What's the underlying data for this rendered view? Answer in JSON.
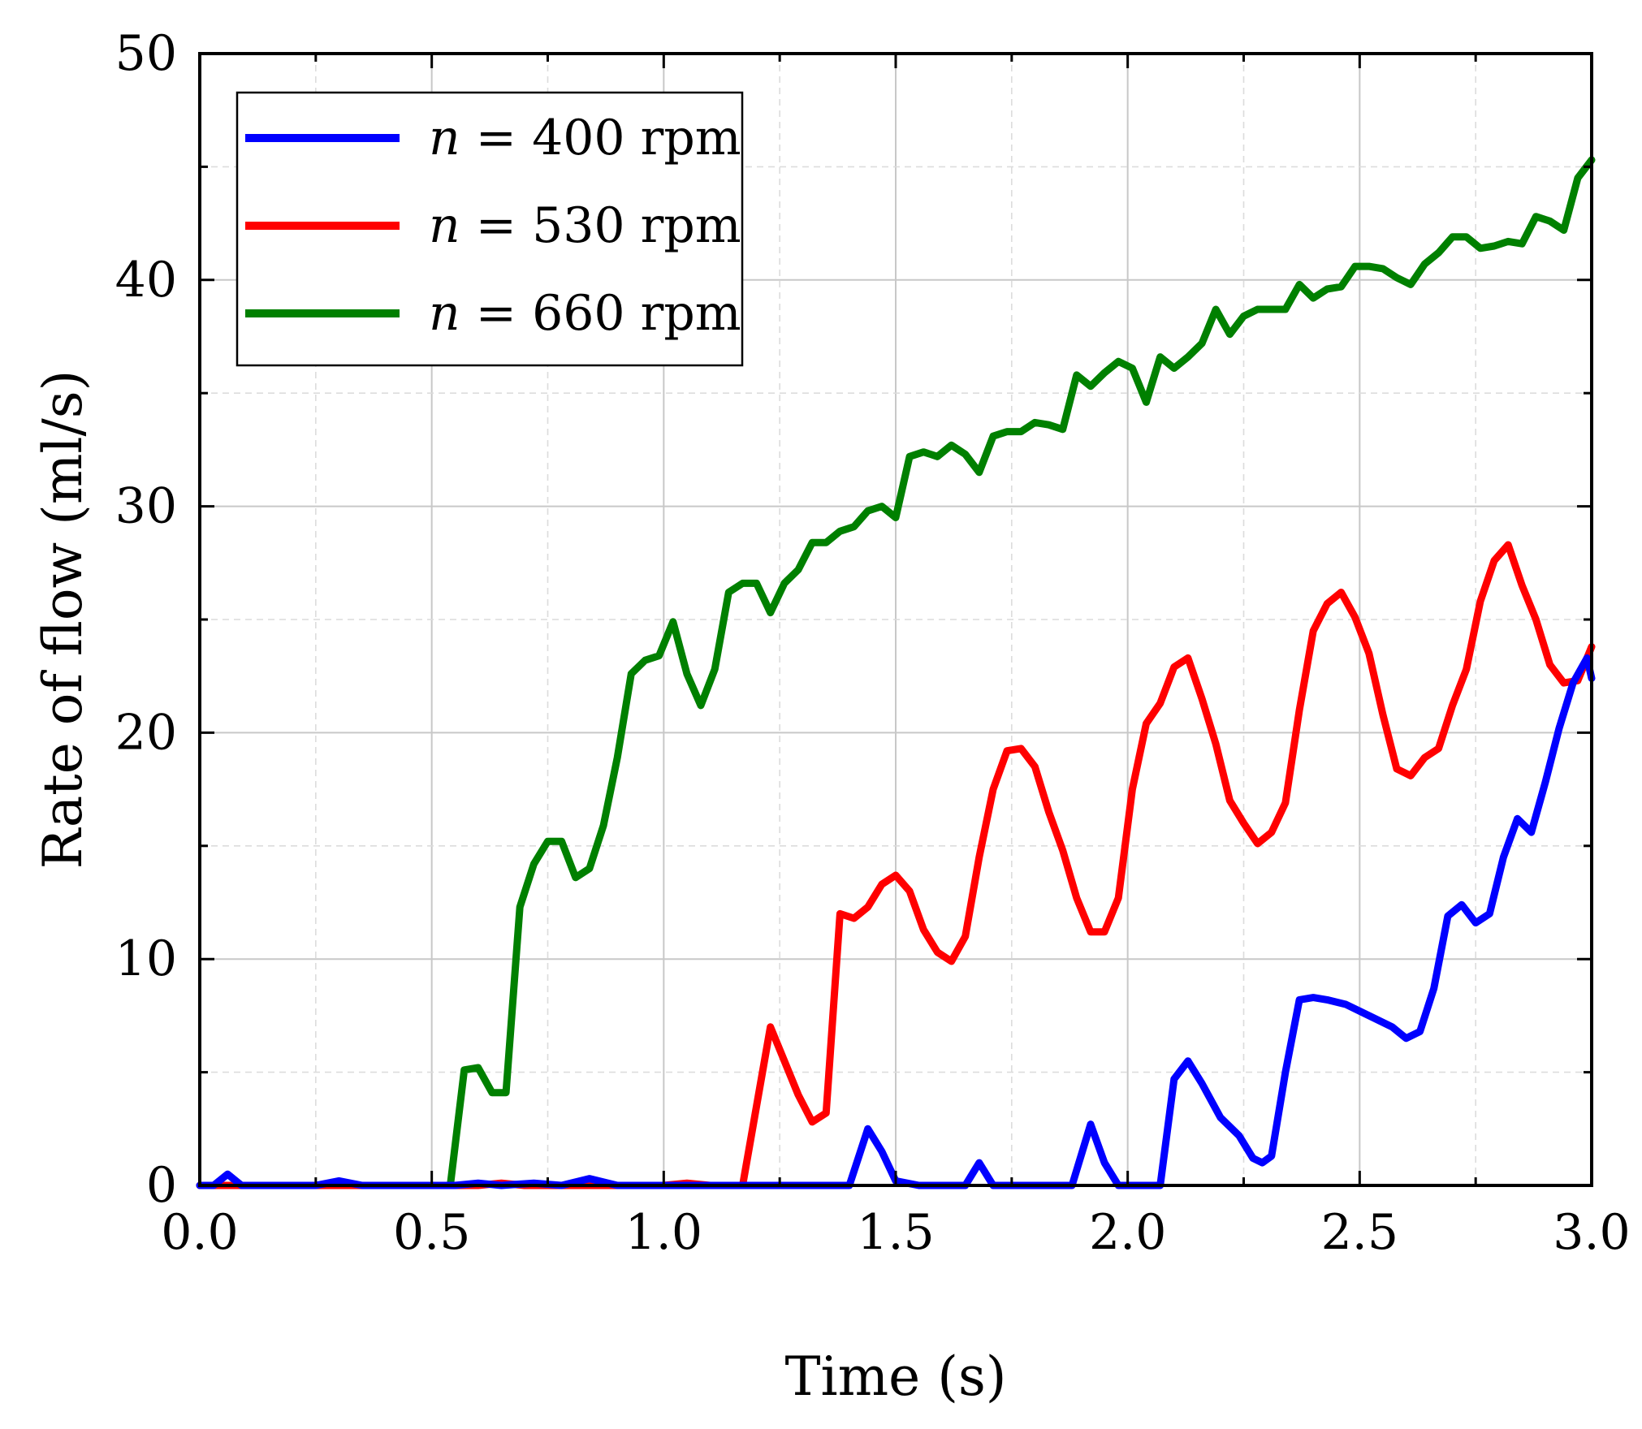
{
  "chart_data": {
    "type": "line",
    "title": "",
    "xlabel": "Time (s)",
    "ylabel": "Rate of flow (ml/s)",
    "xlim": [
      0,
      3
    ],
    "ylim": [
      0,
      50
    ],
    "xticks": [
      0,
      0.5,
      1,
      1.5,
      2,
      2.5,
      3
    ],
    "xtick_labels": [
      "0.0",
      "0.5",
      "1.0",
      "1.5",
      "2.0",
      "2.5",
      "3.0"
    ],
    "yticks": [
      0,
      10,
      20,
      30,
      40,
      50
    ],
    "ytick_labels": [
      "0",
      "10",
      "20",
      "30",
      "40",
      "50"
    ],
    "grid": true,
    "legend_position": "top-left",
    "series": [
      {
        "name": "n = 400 rpm",
        "symbol": "n",
        "label_rest": " = 400 rpm",
        "color": "#0000ff",
        "x": [
          0,
          0.03,
          0.06,
          0.09,
          0.25,
          0.3,
          0.35,
          0.55,
          0.6,
          0.65,
          0.72,
          0.78,
          0.84,
          0.9,
          1.0,
          1.1,
          1.2,
          1.35,
          1.4,
          1.44,
          1.47,
          1.5,
          1.55,
          1.65,
          1.68,
          1.71,
          1.85,
          1.88,
          1.92,
          1.95,
          1.98,
          2.07,
          2.1,
          2.13,
          2.16,
          2.2,
          2.24,
          2.27,
          2.29,
          2.31,
          2.34,
          2.37,
          2.4,
          2.43,
          2.47,
          2.5,
          2.53,
          2.57,
          2.6,
          2.63,
          2.66,
          2.69,
          2.72,
          2.75,
          2.78,
          2.81,
          2.84,
          2.87,
          2.9,
          2.93,
          2.96,
          2.99,
          3.0
        ],
        "y": [
          0,
          0,
          0.5,
          0,
          0,
          0.2,
          0,
          0,
          0.1,
          0,
          0.1,
          0,
          0.3,
          0,
          0,
          0,
          0,
          0,
          0,
          2.5,
          1.5,
          0.2,
          0,
          0,
          1,
          0,
          0,
          0,
          2.7,
          1,
          0,
          0,
          4.7,
          5.5,
          4.5,
          3,
          2.2,
          1.2,
          1,
          1.3,
          5,
          8.2,
          8.3,
          8.2,
          8,
          7.7,
          7.4,
          7,
          6.5,
          6.8,
          8.7,
          11.9,
          12.4,
          11.6,
          12,
          14.5,
          16.2,
          15.6,
          17.8,
          20.2,
          22.2,
          23.3,
          22.4
        ]
      },
      {
        "name": "n = 530 rpm",
        "symbol": "n",
        "label_rest": " = 530 rpm",
        "color": "#ff0000",
        "x": [
          0,
          0.55,
          0.6,
          0.65,
          0.7,
          0.9,
          1.0,
          1.05,
          1.1,
          1.17,
          1.2,
          1.23,
          1.26,
          1.29,
          1.32,
          1.35,
          1.38,
          1.41,
          1.44,
          1.47,
          1.5,
          1.53,
          1.56,
          1.59,
          1.62,
          1.65,
          1.68,
          1.71,
          1.74,
          1.77,
          1.8,
          1.83,
          1.86,
          1.89,
          1.92,
          1.95,
          1.98,
          2.01,
          2.04,
          2.07,
          2.1,
          2.13,
          2.16,
          2.19,
          2.22,
          2.25,
          2.28,
          2.31,
          2.34,
          2.37,
          2.4,
          2.43,
          2.46,
          2.49,
          2.52,
          2.55,
          2.58,
          2.61,
          2.64,
          2.67,
          2.7,
          2.73,
          2.76,
          2.79,
          2.82,
          2.85,
          2.88,
          2.91,
          2.94,
          2.97,
          3.0
        ],
        "y": [
          0,
          0,
          0,
          0.1,
          0,
          0,
          0,
          0.1,
          0,
          0,
          3.5,
          7,
          5.5,
          4,
          2.8,
          3.2,
          12,
          11.8,
          12.3,
          13.3,
          13.7,
          13,
          11.3,
          10.3,
          9.9,
          11,
          14.5,
          17.5,
          19.2,
          19.3,
          18.5,
          16.5,
          14.8,
          12.7,
          11.2,
          11.2,
          12.7,
          17.5,
          20.4,
          21.3,
          22.9,
          23.3,
          21.5,
          19.5,
          17,
          16,
          15.1,
          15.6,
          16.9,
          21,
          24.5,
          25.7,
          26.2,
          25.1,
          23.5,
          20.8,
          18.4,
          18.1,
          18.9,
          19.3,
          21.2,
          22.8,
          25.8,
          27.6,
          28.3,
          26.5,
          25,
          23,
          22.2,
          22.3,
          23.8
        ]
      },
      {
        "name": "n = 660 rpm",
        "symbol": "n",
        "label_rest": " = 660 rpm",
        "color": "#008000",
        "x": [
          0,
          0.54,
          0.57,
          0.6,
          0.63,
          0.66,
          0.69,
          0.72,
          0.75,
          0.78,
          0.81,
          0.84,
          0.87,
          0.9,
          0.93,
          0.96,
          0.99,
          1.02,
          1.05,
          1.08,
          1.11,
          1.14,
          1.17,
          1.2,
          1.23,
          1.26,
          1.29,
          1.32,
          1.35,
          1.38,
          1.41,
          1.44,
          1.47,
          1.5,
          1.53,
          1.56,
          1.59,
          1.62,
          1.65,
          1.68,
          1.71,
          1.74,
          1.77,
          1.8,
          1.83,
          1.86,
          1.89,
          1.92,
          1.95,
          1.98,
          2.01,
          2.04,
          2.07,
          2.1,
          2.13,
          2.16,
          2.19,
          2.22,
          2.25,
          2.28,
          2.31,
          2.34,
          2.37,
          2.4,
          2.43,
          2.46,
          2.49,
          2.52,
          2.55,
          2.58,
          2.61,
          2.64,
          2.67,
          2.7,
          2.73,
          2.76,
          2.79,
          2.82,
          2.85,
          2.88,
          2.91,
          2.94,
          2.97,
          3.0
        ],
        "y": [
          0,
          0,
          5.1,
          5.2,
          4.1,
          4.1,
          12.3,
          14.2,
          15.2,
          15.2,
          13.6,
          14,
          15.9,
          18.9,
          22.6,
          23.2,
          23.4,
          24.9,
          22.6,
          21.2,
          22.8,
          26.2,
          26.6,
          26.6,
          25.3,
          26.6,
          27.2,
          28.4,
          28.4,
          28.9,
          29.1,
          29.8,
          30,
          29.5,
          32.2,
          32.4,
          32.2,
          32.7,
          32.3,
          31.5,
          33.1,
          33.3,
          33.3,
          33.7,
          33.6,
          33.4,
          35.8,
          35.3,
          35.9,
          36.4,
          36.1,
          34.6,
          36.6,
          36.1,
          36.6,
          37.2,
          38.7,
          37.6,
          38.4,
          38.7,
          38.7,
          38.7,
          39.8,
          39.2,
          39.6,
          39.7,
          40.6,
          40.6,
          40.5,
          40.1,
          39.8,
          40.7,
          41.2,
          41.9,
          41.9,
          41.4,
          41.5,
          41.7,
          41.6,
          42.8,
          42.6,
          42.2,
          44.5,
          45.3
        ]
      }
    ]
  }
}
